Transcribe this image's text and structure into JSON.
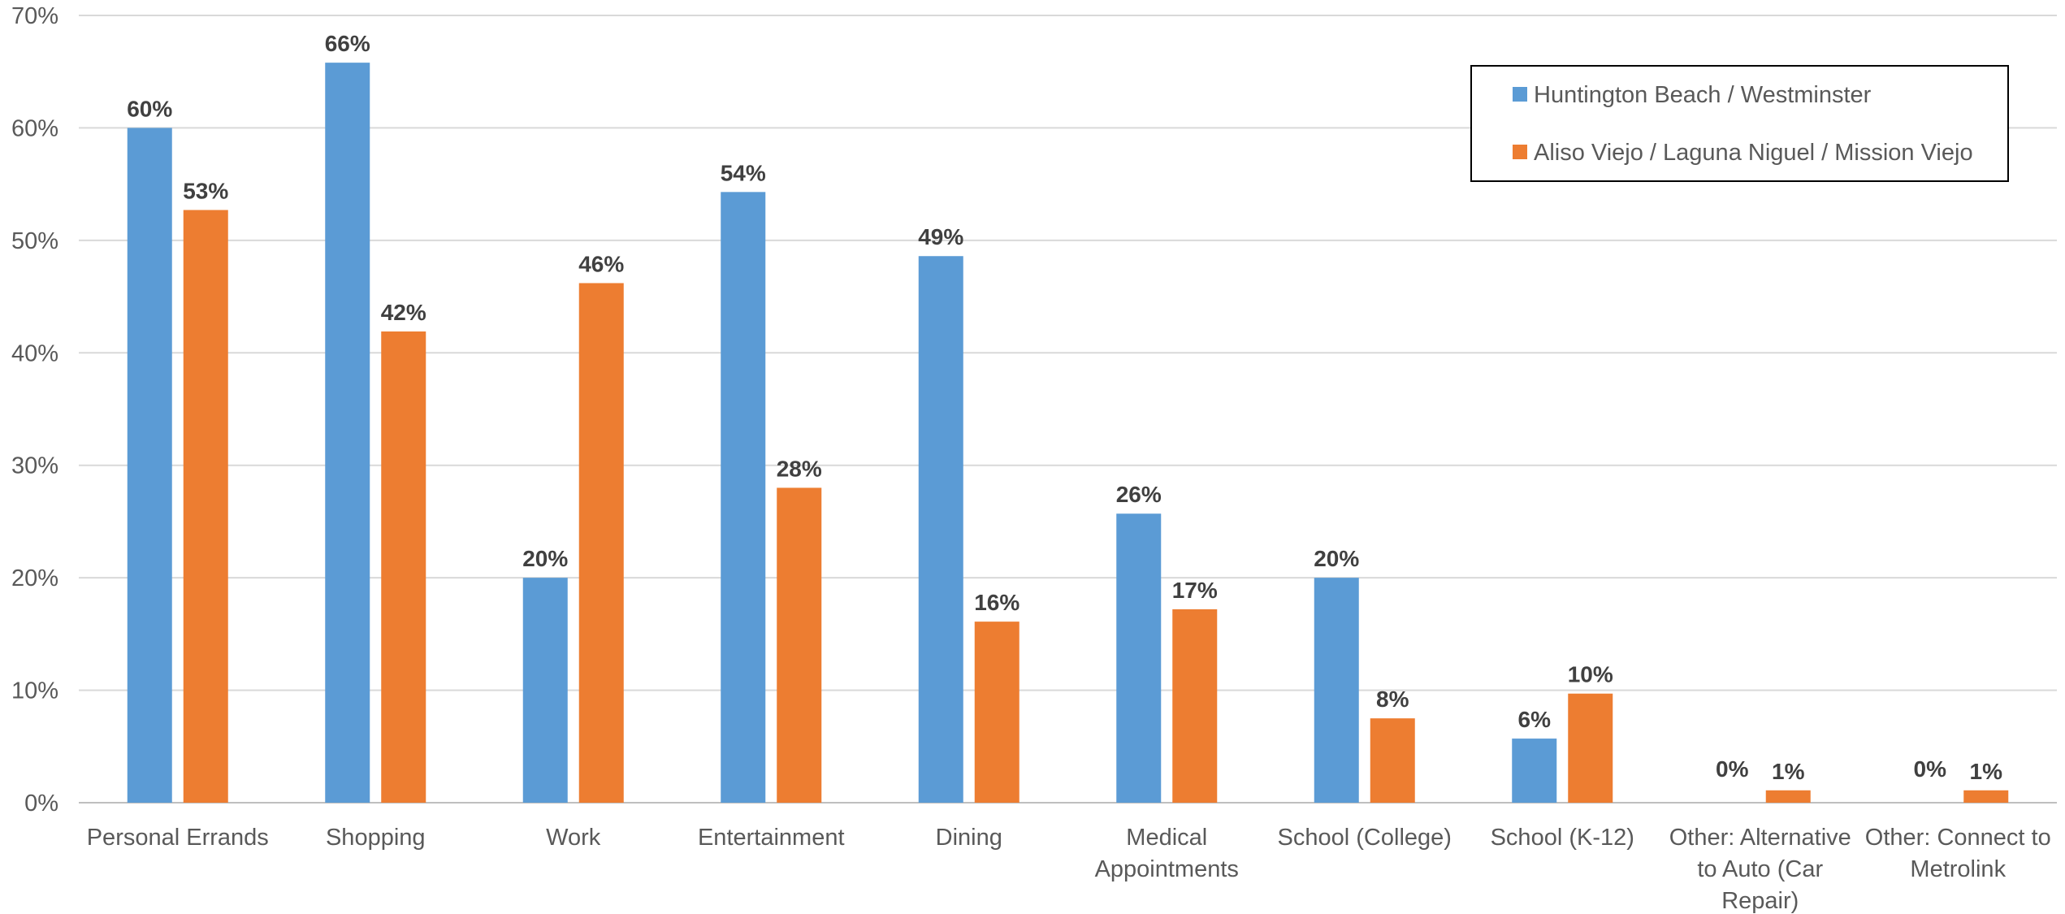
{
  "chart_data": {
    "type": "bar",
    "categories": [
      [
        "Personal Errands"
      ],
      [
        "Shopping"
      ],
      [
        "Work"
      ],
      [
        "Entertainment"
      ],
      [
        "Dining"
      ],
      [
        "Medical",
        "Appointments"
      ],
      [
        "School (College)"
      ],
      [
        "School (K-12)"
      ],
      [
        "Other: Alternative",
        "to Auto (Car",
        "Repair)"
      ],
      [
        "Other: Connect to",
        "Metrolink"
      ]
    ],
    "series": [
      {
        "name": "Huntington Beach / Westminster",
        "color": "#5B9BD5",
        "values": [
          60,
          66,
          20,
          54,
          49,
          26,
          20,
          6,
          0,
          0
        ],
        "bar_values": [
          60,
          65.8,
          20,
          54.3,
          48.6,
          25.7,
          20,
          5.7,
          0,
          0
        ],
        "labels": [
          "60%",
          "66%",
          "20%",
          "54%",
          "49%",
          "26%",
          "20%",
          "6%",
          "0%",
          "0%"
        ]
      },
      {
        "name": "Aliso Viejo / Laguna Niguel / Mission Viejo",
        "color": "#ED7D31",
        "values": [
          53,
          42,
          46,
          28,
          16,
          17,
          8,
          10,
          1,
          1
        ],
        "bar_values": [
          52.7,
          41.9,
          46.2,
          28,
          16.1,
          17.2,
          7.5,
          9.7,
          1.1,
          1.1
        ],
        "labels": [
          "53%",
          "42%",
          "46%",
          "28%",
          "16%",
          "17%",
          "8%",
          "10%",
          "1%",
          "1%"
        ]
      }
    ],
    "y_ticks": [
      "0%",
      "10%",
      "20%",
      "30%",
      "40%",
      "50%",
      "60%",
      "70%"
    ],
    "ylim": [
      0,
      70
    ],
    "grid": true,
    "legend_position": "top-right",
    "title": "",
    "xlabel": "",
    "ylabel": ""
  }
}
